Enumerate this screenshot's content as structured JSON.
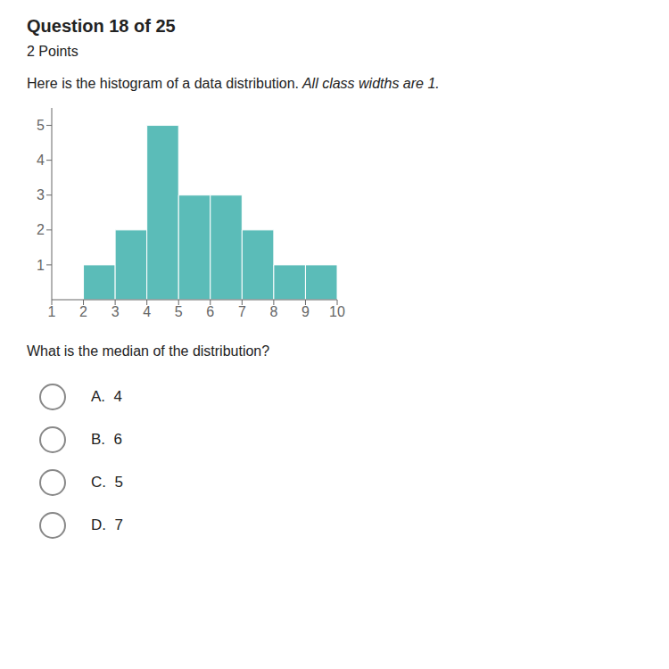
{
  "chart_data": {
    "type": "histogram",
    "title": "Question 18 of 25",
    "subtitle": "2 Points",
    "annotations": [
      "Here is the histogram of a data distribution.",
      " All class widths are 1.",
      "What is the median of the distribution?",
      "A.  4",
      "B.  6",
      "C.  5",
      "D.  7"
    ],
    "bins": [
      2,
      3,
      4,
      5,
      6,
      7,
      8,
      9,
      10
    ],
    "values": [
      1,
      2,
      5,
      3,
      3,
      2,
      1,
      1
    ],
    "color": "#5bbcb8",
    "xlim": [
      1,
      10
    ],
    "ylim": [
      0,
      5.5
    ],
    "xticks": [
      1,
      2,
      3,
      4,
      5,
      6,
      7,
      8,
      9,
      10
    ],
    "yticks": [
      1,
      2,
      3,
      4,
      5
    ],
    "grid": false
  }
}
